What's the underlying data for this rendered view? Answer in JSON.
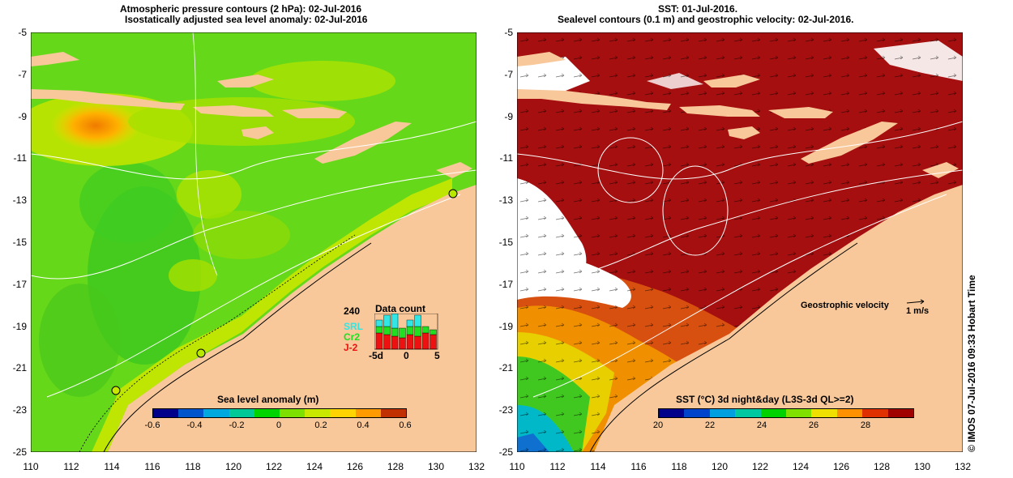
{
  "left_panel": {
    "title_line1": "Atmospheric pressure contours (2 hPa): 02-Jul-2016",
    "title_line2": "Isostatically adjusted sea level anomaly: 02-Jul-2016",
    "colorbar": {
      "label": "Sea level anomaly (m)",
      "ticks": [
        "-0.6",
        "-0.4",
        "-0.2",
        "0",
        "0.2",
        "0.4",
        "0.6"
      ],
      "colors": [
        "#00008b",
        "#0055cc",
        "#00a8e0",
        "#00c896",
        "#00d400",
        "#7ee000",
        "#c8e800",
        "#ffd400",
        "#ff9a00",
        "#c03000"
      ]
    },
    "data_count": {
      "max_label": "240",
      "title": "Data count",
      "legend": [
        {
          "name": "SRL",
          "color": "#33e6e6"
        },
        {
          "name": "Cr2",
          "color": "#22dd22"
        },
        {
          "name": "J-2",
          "color": "#ee1111"
        }
      ],
      "x_labels": [
        "-5d",
        "0",
        "5"
      ]
    }
  },
  "right_panel": {
    "title_line1": "SST: 01-Jul-2016.",
    "title_line2": "Sealevel contours (0.1 m) and geostrophic velocity: 02-Jul-2016.",
    "velocity_label": "Geostrophic velocity",
    "velocity_scale": "1 m/s",
    "colorbar": {
      "label": "SST (°C) 3d night&day (L3S-3d QL>=2)",
      "ticks": [
        "20",
        "22",
        "24",
        "26",
        "28"
      ],
      "colors": [
        "#00008b",
        "#0044cc",
        "#00a0e0",
        "#00c8a0",
        "#00d200",
        "#80e000",
        "#f0e000",
        "#ff9000",
        "#e03000",
        "#a00000"
      ]
    }
  },
  "axes": {
    "y_ticks": [
      "-5",
      "-7",
      "-9",
      "-11",
      "-13",
      "-15",
      "-17",
      "-19",
      "-21",
      "-23",
      "-25"
    ],
    "x_ticks": [
      "110",
      "112",
      "114",
      "116",
      "118",
      "120",
      "122",
      "124",
      "126",
      "128",
      "130",
      "132"
    ]
  },
  "colors": {
    "land": "#f8c89a",
    "ocean_left": "#66d81a",
    "ocean_right": "#a50f0f"
  },
  "copyright": "© IMOS 07-Jul-2016 09:33 Hobart Time"
}
